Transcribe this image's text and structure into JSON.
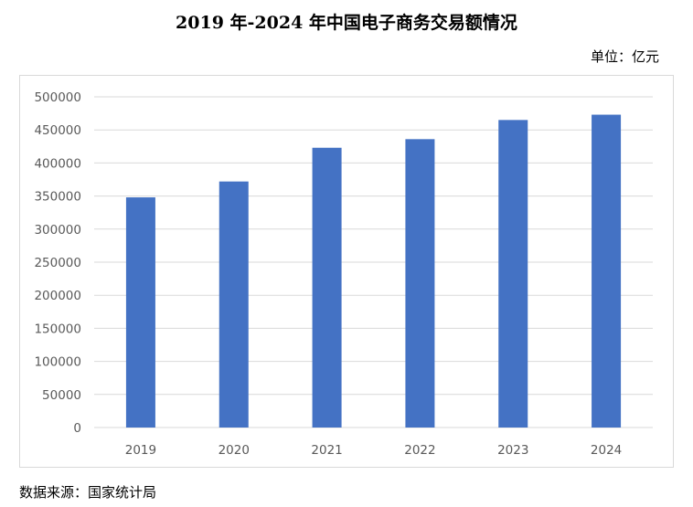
{
  "title": "2019 年-2024 年中国电子商务交易额情况",
  "unit_label": "单位：亿元",
  "source_label": "数据来源：国家统计局",
  "colors": {
    "bar": "#4472c4",
    "grid": "#d9d9d9",
    "tick": "#595959"
  },
  "chart_data": {
    "type": "bar",
    "title": "2019 年-2024 年中国电子商务交易额情况",
    "xlabel": "",
    "ylabel": "",
    "categories": [
      "2019",
      "2020",
      "2021",
      "2022",
      "2023",
      "2024"
    ],
    "values": [
      348000,
      372000,
      423000,
      436000,
      465000,
      473000
    ],
    "ylim": [
      0,
      500000
    ],
    "yticks": [
      0,
      50000,
      100000,
      150000,
      200000,
      250000,
      300000,
      350000,
      400000,
      450000,
      500000
    ],
    "ytick_labels": [
      "0",
      "50000",
      "100000",
      "150000",
      "200000",
      "250000",
      "300000",
      "350000",
      "400000",
      "450000",
      "500000"
    ],
    "grid": true,
    "legend": "none"
  }
}
